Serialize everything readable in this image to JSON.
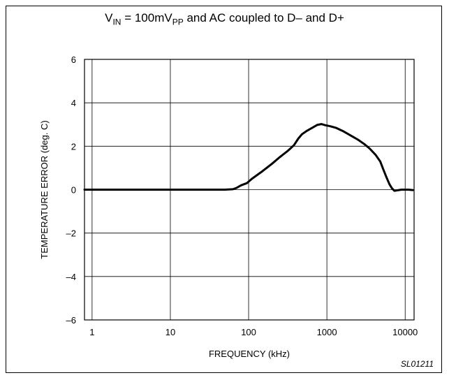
{
  "chart_data": {
    "type": "line",
    "title": {
      "v": "V",
      "in_sub": "IN",
      "mid": " = 100mV",
      "pp_sub": "PP",
      "rest": " and AC coupled to D–  and  D+"
    },
    "xlabel": "FREQUENCY (kHz)",
    "ylabel": "TEMPERATURE ERROR (deg. C)",
    "x_scale": "log",
    "xlim": [
      0.8,
      13000
    ],
    "ylim": [
      -6,
      6
    ],
    "x_ticks": [
      1,
      10,
      100,
      1000,
      10000
    ],
    "x_tick_labels": [
      "1",
      "10",
      "100",
      "1000",
      "10000"
    ],
    "y_ticks": [
      6,
      4,
      2,
      0,
      -2,
      -4,
      -6
    ],
    "y_tick_labels": [
      "6",
      "4",
      "2",
      "0",
      "–2",
      "–4",
      "–6"
    ],
    "grid": true,
    "series": [
      {
        "color": "#000000",
        "points": [
          [
            0.8,
            0
          ],
          [
            1,
            0
          ],
          [
            10,
            0
          ],
          [
            50,
            0
          ],
          [
            63,
            0.02
          ],
          [
            70,
            0.08
          ],
          [
            80,
            0.2
          ],
          [
            95,
            0.3
          ],
          [
            110,
            0.5
          ],
          [
            150,
            0.85
          ],
          [
            200,
            1.2
          ],
          [
            250,
            1.5
          ],
          [
            320,
            1.8
          ],
          [
            380,
            2.05
          ],
          [
            430,
            2.35
          ],
          [
            480,
            2.55
          ],
          [
            550,
            2.7
          ],
          [
            650,
            2.85
          ],
          [
            750,
            2.98
          ],
          [
            850,
            3.02
          ],
          [
            950,
            2.97
          ],
          [
            1100,
            2.92
          ],
          [
            1300,
            2.85
          ],
          [
            1600,
            2.7
          ],
          [
            2000,
            2.5
          ],
          [
            2500,
            2.3
          ],
          [
            3000,
            2.1
          ],
          [
            3500,
            1.9
          ],
          [
            4200,
            1.6
          ],
          [
            4800,
            1.3
          ],
          [
            5300,
            0.9
          ],
          [
            5800,
            0.55
          ],
          [
            6300,
            0.25
          ],
          [
            6800,
            0.05
          ],
          [
            7300,
            -0.05
          ],
          [
            8000,
            -0.03
          ],
          [
            9000,
            0
          ],
          [
            11000,
            0
          ],
          [
            12500,
            -0.02
          ]
        ]
      }
    ]
  },
  "figure_tag": "SL01211"
}
